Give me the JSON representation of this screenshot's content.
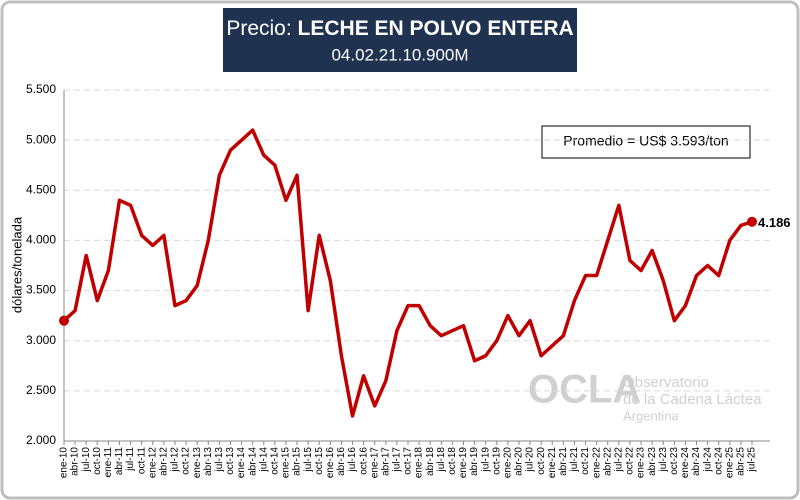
{
  "chart_data": {
    "type": "line",
    "title_label": "Precio:",
    "title": "LECHE EN POLVO ENTERA",
    "subtitle": "04.02.21.10.900M",
    "y_label": "dólares/tonelada",
    "annotation": "Promedio = US$ 3.593/ton",
    "watermark": [
      "OCLA",
      "Observatorio",
      "de la Cadena Láctea",
      "Argentina"
    ],
    "categories": [
      "ene-10",
      "abr-10",
      "jul-10",
      "oct-10",
      "ene-11",
      "abr-11",
      "jul-11",
      "oct-11",
      "ene-12",
      "abr-12",
      "jul-12",
      "oct-12",
      "ene-13",
      "abr-13",
      "jul-13",
      "oct-13",
      "ene-14",
      "abr-14",
      "jul-14",
      "oct-14",
      "ene-15",
      "abr-15",
      "jul-15",
      "oct-15",
      "ene-16",
      "abr-16",
      "jul-16",
      "oct-16",
      "ene-17",
      "abr-17",
      "jul-17",
      "oct-17",
      "ene-18",
      "abr-18",
      "jul-18",
      "oct-18",
      "ene-19",
      "abr-19",
      "jul-19",
      "oct-19",
      "ene-20",
      "abr-20",
      "jul-20",
      "oct-20",
      "ene-21",
      "abr-21",
      "jul-21",
      "oct-21",
      "ene-22",
      "abr-22",
      "jul-22",
      "oct-22",
      "ene-23",
      "abr-23",
      "jul-23",
      "oct-23",
      "ene-24",
      "abr-24",
      "jul-24",
      "oct-24",
      "ene-25",
      "abr-25",
      "jul-25"
    ],
    "values": [
      3200,
      3300,
      3850,
      3400,
      3700,
      4400,
      4350,
      4050,
      3950,
      4050,
      3350,
      3400,
      3550,
      4000,
      4650,
      4900,
      5000,
      5100,
      4850,
      4750,
      4400,
      4650,
      3300,
      4050,
      3600,
      2850,
      2250,
      2650,
      2350,
      2600,
      3100,
      3350,
      3350,
      3150,
      3050,
      3100,
      3150,
      2800,
      2850,
      3000,
      3250,
      3050,
      3200,
      2850,
      2950,
      3050,
      3400,
      3650,
      3650,
      4000,
      4350,
      3800,
      3700,
      3900,
      3600,
      3200,
      3350,
      3650,
      3750,
      3650,
      4000,
      4150,
      4186
    ],
    "value_labels": [
      null,
      null,
      null,
      null,
      null,
      null,
      null,
      null,
      null,
      null,
      null,
      null,
      null,
      null,
      null,
      null,
      null,
      null,
      null,
      null,
      null,
      null,
      null,
      null,
      null,
      null,
      null,
      null,
      null,
      null,
      null,
      null,
      null,
      null,
      null,
      null,
      null,
      null,
      null,
      null,
      null,
      null,
      null,
      null,
      null,
      null,
      null,
      null,
      null,
      null,
      null,
      null,
      null,
      null,
      null,
      null,
      null,
      null,
      null,
      null,
      null,
      null,
      "4.186"
    ],
    "color": "#c00000",
    "ylim": [
      2000,
      5500
    ],
    "yticks": [
      {
        "value": 2000,
        "label": "2.000"
      },
      {
        "value": 2500,
        "label": "2.500"
      },
      {
        "value": 3000,
        "label": "3.000"
      },
      {
        "value": 3500,
        "label": "3.500"
      },
      {
        "value": 4000,
        "label": "4.000"
      },
      {
        "value": 4500,
        "label": "4.500"
      },
      {
        "value": 5000,
        "label": "5.000"
      },
      {
        "value": 5500,
        "label": "5.500"
      }
    ],
    "grid": true
  }
}
